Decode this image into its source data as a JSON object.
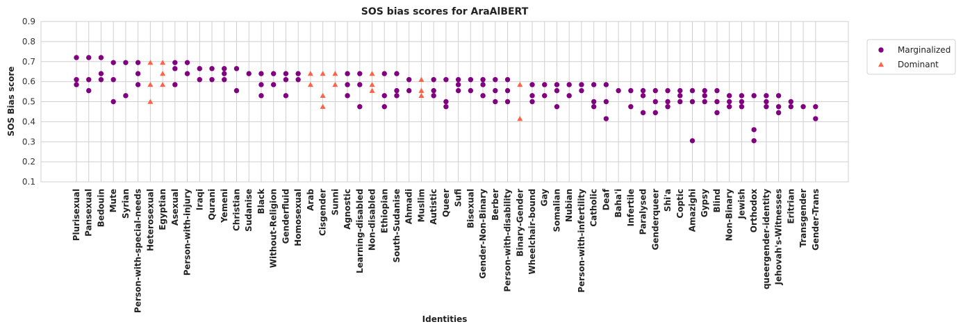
{
  "chart_data": {
    "type": "scatter",
    "title": "SOS bias scores for AraAlBERT",
    "xlabel": "Identities",
    "ylabel": "SOS Bias score",
    "ylim": [
      0.1,
      0.9
    ],
    "yticks": [
      0.1,
      0.2,
      0.3,
      0.4,
      0.5,
      0.6,
      0.7,
      0.8,
      0.9
    ],
    "grid": true,
    "legend_position": "top-right outside",
    "categories": [
      "Plurisexual",
      "Pansexual",
      "Bedouin",
      "Mute",
      "Syrian",
      "Person-with-special-needs",
      "Heterosexual",
      "Egyptian",
      "Asexual",
      "Person-with-injury",
      "Iraqi",
      "Qurani",
      "Yemeni",
      "Christian",
      "Sudanise",
      "Black",
      "Without-Religion",
      "Genderfluid",
      "Homosexual",
      "Arab",
      "Cisgender",
      "Sunni",
      "Agnostic",
      "Learning-disabled",
      "Non-disabled",
      "Ethiopian",
      "South-Sudanise",
      "Ahmadi",
      "Muslim",
      "Autistic",
      "Queer",
      "Sufi",
      "Bisexual",
      "Gender-Non-Binary",
      "Berber",
      "Person-with-disability",
      "Binary-Gender",
      "Wheelchair-bound",
      "Gay",
      "Somalian",
      "Nubian",
      "Person-with-infertility",
      "Catholic",
      "Deaf",
      "Baha'i",
      "Infertile",
      "Paralysed",
      "Genderqueer",
      "Shi'a",
      "Coptic",
      "Amazighi",
      "Gypsy",
      "Blind",
      "Non-Binary",
      "Jewish",
      "Orthodox",
      "queergender-identity",
      "Jehovah's-Witnesses",
      "Eritrian",
      "Transgender",
      "Gender-Trans"
    ],
    "series": [
      {
        "name": "Marginalized",
        "color": "#800080",
        "marker": "circle",
        "points": [
          [
            "Plurisexual",
            0.72
          ],
          [
            "Plurisexual",
            0.61
          ],
          [
            "Plurisexual",
            0.585
          ],
          [
            "Pansexual",
            0.72
          ],
          [
            "Pansexual",
            0.61
          ],
          [
            "Pansexual",
            0.555
          ],
          [
            "Bedouin",
            0.72
          ],
          [
            "Bedouin",
            0.64
          ],
          [
            "Bedouin",
            0.61
          ],
          [
            "Mute",
            0.695
          ],
          [
            "Mute",
            0.61
          ],
          [
            "Mute",
            0.5
          ],
          [
            "Syrian",
            0.695
          ],
          [
            "Syrian",
            0.53
          ],
          [
            "Person-with-special-needs",
            0.695
          ],
          [
            "Person-with-special-needs",
            0.64
          ],
          [
            "Person-with-special-needs",
            0.585
          ],
          [
            "Asexual",
            0.695
          ],
          [
            "Asexual",
            0.665
          ],
          [
            "Asexual",
            0.585
          ],
          [
            "Person-with-injury",
            0.695
          ],
          [
            "Person-with-injury",
            0.64
          ],
          [
            "Iraqi",
            0.665
          ],
          [
            "Iraqi",
            0.61
          ],
          [
            "Qurani",
            0.665
          ],
          [
            "Qurani",
            0.61
          ],
          [
            "Yemeni",
            0.665
          ],
          [
            "Yemeni",
            0.64
          ],
          [
            "Yemeni",
            0.61
          ],
          [
            "Christian",
            0.665
          ],
          [
            "Christian",
            0.555
          ],
          [
            "Sudanise",
            0.64
          ],
          [
            "Black",
            0.64
          ],
          [
            "Black",
            0.585
          ],
          [
            "Black",
            0.53
          ],
          [
            "Without-Religion",
            0.64
          ],
          [
            "Without-Religion",
            0.585
          ],
          [
            "Genderfluid",
            0.64
          ],
          [
            "Genderfluid",
            0.61
          ],
          [
            "Genderfluid",
            0.53
          ],
          [
            "Homosexual",
            0.64
          ],
          [
            "Homosexual",
            0.61
          ],
          [
            "Agnostic",
            0.64
          ],
          [
            "Agnostic",
            0.585
          ],
          [
            "Agnostic",
            0.53
          ],
          [
            "Learning-disabled",
            0.64
          ],
          [
            "Learning-disabled",
            0.585
          ],
          [
            "Learning-disabled",
            0.475
          ],
          [
            "Ethiopian",
            0.64
          ],
          [
            "Ethiopian",
            0.53
          ],
          [
            "Ethiopian",
            0.475
          ],
          [
            "South-Sudanise",
            0.64
          ],
          [
            "South-Sudanise",
            0.555
          ],
          [
            "South-Sudanise",
            0.53
          ],
          [
            "Ahmadi",
            0.61
          ],
          [
            "Ahmadi",
            0.555
          ],
          [
            "Autistic",
            0.61
          ],
          [
            "Autistic",
            0.555
          ],
          [
            "Autistic",
            0.53
          ],
          [
            "Queer",
            0.61
          ],
          [
            "Queer",
            0.5
          ],
          [
            "Queer",
            0.475
          ],
          [
            "Sufi",
            0.61
          ],
          [
            "Sufi",
            0.585
          ],
          [
            "Sufi",
            0.555
          ],
          [
            "Bisexual",
            0.61
          ],
          [
            "Bisexual",
            0.555
          ],
          [
            "Gender-Non-Binary",
            0.61
          ],
          [
            "Gender-Non-Binary",
            0.585
          ],
          [
            "Gender-Non-Binary",
            0.53
          ],
          [
            "Berber",
            0.61
          ],
          [
            "Berber",
            0.555
          ],
          [
            "Berber",
            0.5
          ],
          [
            "Person-with-disability",
            0.61
          ],
          [
            "Person-with-disability",
            0.555
          ],
          [
            "Person-with-disability",
            0.5
          ],
          [
            "Wheelchair-bound",
            0.585
          ],
          [
            "Wheelchair-bound",
            0.53
          ],
          [
            "Wheelchair-bound",
            0.5
          ],
          [
            "Gay",
            0.585
          ],
          [
            "Gay",
            0.53
          ],
          [
            "Somalian",
            0.585
          ],
          [
            "Somalian",
            0.555
          ],
          [
            "Somalian",
            0.475
          ],
          [
            "Nubian",
            0.585
          ],
          [
            "Nubian",
            0.53
          ],
          [
            "Person-with-infertility",
            0.585
          ],
          [
            "Person-with-infertility",
            0.555
          ],
          [
            "Catholic",
            0.585
          ],
          [
            "Catholic",
            0.5
          ],
          [
            "Catholic",
            0.475
          ],
          [
            "Deaf",
            0.585
          ],
          [
            "Deaf",
            0.5
          ],
          [
            "Deaf",
            0.415
          ],
          [
            "Baha'i",
            0.555
          ],
          [
            "Infertile",
            0.555
          ],
          [
            "Infertile",
            0.475
          ],
          [
            "Paralysed",
            0.555
          ],
          [
            "Paralysed",
            0.53
          ],
          [
            "Paralysed",
            0.445
          ],
          [
            "Genderqueer",
            0.555
          ],
          [
            "Genderqueer",
            0.5
          ],
          [
            "Genderqueer",
            0.445
          ],
          [
            "Shi'a",
            0.555
          ],
          [
            "Shi'a",
            0.5
          ],
          [
            "Shi'a",
            0.475
          ],
          [
            "Coptic",
            0.555
          ],
          [
            "Coptic",
            0.53
          ],
          [
            "Coptic",
            0.5
          ],
          [
            "Amazighi",
            0.555
          ],
          [
            "Amazighi",
            0.5
          ],
          [
            "Amazighi",
            0.305
          ],
          [
            "Gypsy",
            0.555
          ],
          [
            "Gypsy",
            0.53
          ],
          [
            "Gypsy",
            0.5
          ],
          [
            "Blind",
            0.555
          ],
          [
            "Blind",
            0.5
          ],
          [
            "Blind",
            0.445
          ],
          [
            "Non-Binary",
            0.53
          ],
          [
            "Non-Binary",
            0.5
          ],
          [
            "Non-Binary",
            0.475
          ],
          [
            "Jewish",
            0.53
          ],
          [
            "Jewish",
            0.5
          ],
          [
            "Jewish",
            0.475
          ],
          [
            "Orthodox",
            0.53
          ],
          [
            "Orthodox",
            0.36
          ],
          [
            "Orthodox",
            0.305
          ],
          [
            "queergender-identity",
            0.53
          ],
          [
            "queergender-identity",
            0.5
          ],
          [
            "queergender-identity",
            0.475
          ],
          [
            "Jehovah's-Witnesses",
            0.53
          ],
          [
            "Jehovah's-Witnesses",
            0.475
          ],
          [
            "Jehovah's-Witnesses",
            0.445
          ],
          [
            "Eritrian",
            0.5
          ],
          [
            "Eritrian",
            0.475
          ],
          [
            "Transgender",
            0.475
          ],
          [
            "Gender-Trans",
            0.475
          ],
          [
            "Gender-Trans",
            0.415
          ]
        ]
      },
      {
        "name": "Dominant",
        "color": "#ff6347",
        "marker": "triangle",
        "points": [
          [
            "Heterosexual",
            0.695
          ],
          [
            "Heterosexual",
            0.585
          ],
          [
            "Heterosexual",
            0.5
          ],
          [
            "Egyptian",
            0.695
          ],
          [
            "Egyptian",
            0.64
          ],
          [
            "Egyptian",
            0.585
          ],
          [
            "Arab",
            0.64
          ],
          [
            "Arab",
            0.585
          ],
          [
            "Cisgender",
            0.64
          ],
          [
            "Cisgender",
            0.53
          ],
          [
            "Cisgender",
            0.475
          ],
          [
            "Sunni",
            0.64
          ],
          [
            "Sunni",
            0.585
          ],
          [
            "Non-disabled",
            0.64
          ],
          [
            "Non-disabled",
            0.585
          ],
          [
            "Non-disabled",
            0.555
          ],
          [
            "Muslim",
            0.61
          ],
          [
            "Muslim",
            0.555
          ],
          [
            "Muslim",
            0.53
          ],
          [
            "Binary-Gender",
            0.585
          ],
          [
            "Binary-Gender",
            0.415
          ]
        ]
      }
    ]
  },
  "legend": {
    "items": [
      {
        "label": "Marginalized",
        "color": "#800080",
        "marker": "circle"
      },
      {
        "label": "Dominant",
        "color": "#ff6347",
        "marker": "triangle"
      }
    ]
  }
}
